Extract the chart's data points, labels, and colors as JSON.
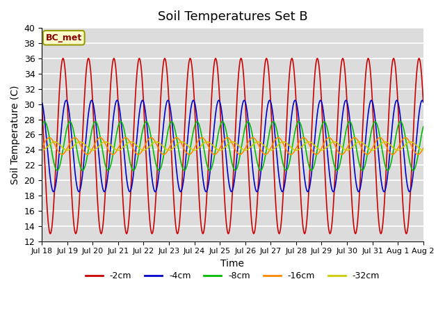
{
  "title": "Soil Temperatures Set B",
  "xlabel": "Time",
  "ylabel": "Soil Temperature (C)",
  "ylim": [
    12,
    40
  ],
  "yticks": [
    12,
    14,
    16,
    18,
    20,
    22,
    24,
    26,
    28,
    30,
    32,
    34,
    36,
    38,
    40
  ],
  "annotation": "BC_met",
  "series": [
    {
      "label": "-2cm",
      "color": "#cc0000",
      "amplitude": 11.5,
      "phase_hours": 0.0,
      "mean": 24.5
    },
    {
      "label": "-4cm",
      "color": "#0000cc",
      "amplitude": 6.0,
      "phase_hours": 3.0,
      "mean": 24.5
    },
    {
      "label": "-8cm",
      "color": "#00bb00",
      "amplitude": 3.2,
      "phase_hours": 6.5,
      "mean": 24.5
    },
    {
      "label": "-16cm",
      "color": "#ff8800",
      "amplitude": 1.1,
      "phase_hours": 11.0,
      "mean": 24.5
    },
    {
      "label": "-32cm",
      "color": "#cccc00",
      "amplitude": 0.55,
      "phase_hours": 16.0,
      "mean": 24.5
    }
  ],
  "xtick_labels": [
    "Jul 18",
    "Jul 19",
    "Jul 20",
    "Jul 21",
    "Jul 22",
    "Jul 23",
    "Jul 24",
    "Jul 25",
    "Jul 26",
    "Jul 27",
    "Jul 28",
    "Jul 29",
    "Jul 30",
    "Jul 31",
    "Aug 1",
    "Aug 2"
  ],
  "bg_color": "#dcdcdc",
  "grid_color": "#ffffff",
  "figsize": [
    6.4,
    4.8
  ],
  "dpi": 100
}
